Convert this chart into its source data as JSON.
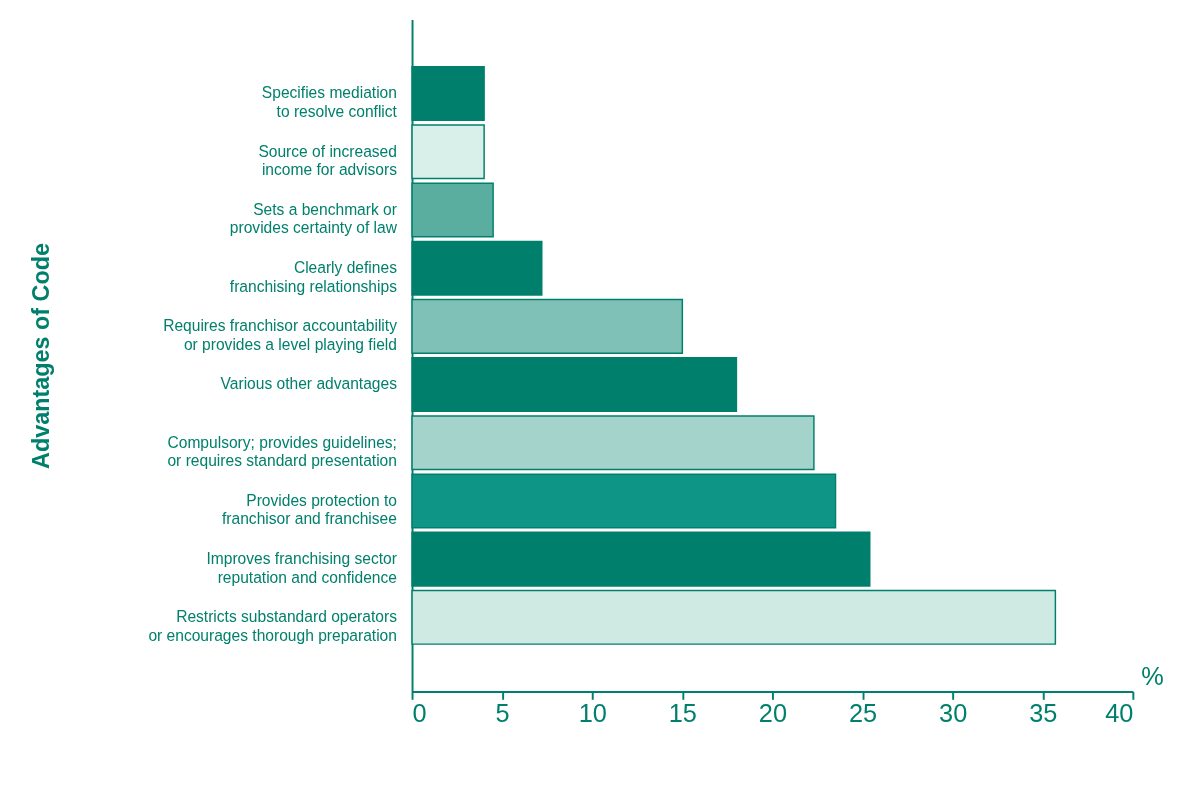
{
  "chart_data": {
    "type": "bar",
    "orientation": "horizontal",
    "ylabel": "Advantages of Code",
    "xlabel": "%",
    "categories": [
      "Specifies mediation\nto resolve conflict",
      "Source of increased\nincome for advisors",
      "Sets a benchmark or\nprovides certainty of law",
      "Clearly defines\nfranchising relationships",
      "Requires franchisor accountability\nor provides a level playing field",
      "Various other advantages",
      "Compulsory; provides guidelines;\nor requires standard presentation",
      "Provides protection to\nfranchisor and franchisee",
      "Improves franchising sector\nreputation and confidence",
      "Restricts substandard operators\nor encourages thorough preparation"
    ],
    "values": [
      4,
      4,
      4.5,
      7.2,
      15,
      18,
      22.3,
      23.5,
      25.4,
      35.7
    ],
    "colors": [
      "#00806c",
      "#d8efea",
      "#5aaea0",
      "#00806c",
      "#7fc1b6",
      "#00806c",
      "#a3d3ca",
      "#0f9585",
      "#00806c",
      "#cfeae3"
    ],
    "xlim": [
      0,
      40
    ],
    "xticks": [
      0,
      5,
      10,
      15,
      20,
      25,
      30,
      35,
      40
    ],
    "grid": false,
    "legend": false
  }
}
